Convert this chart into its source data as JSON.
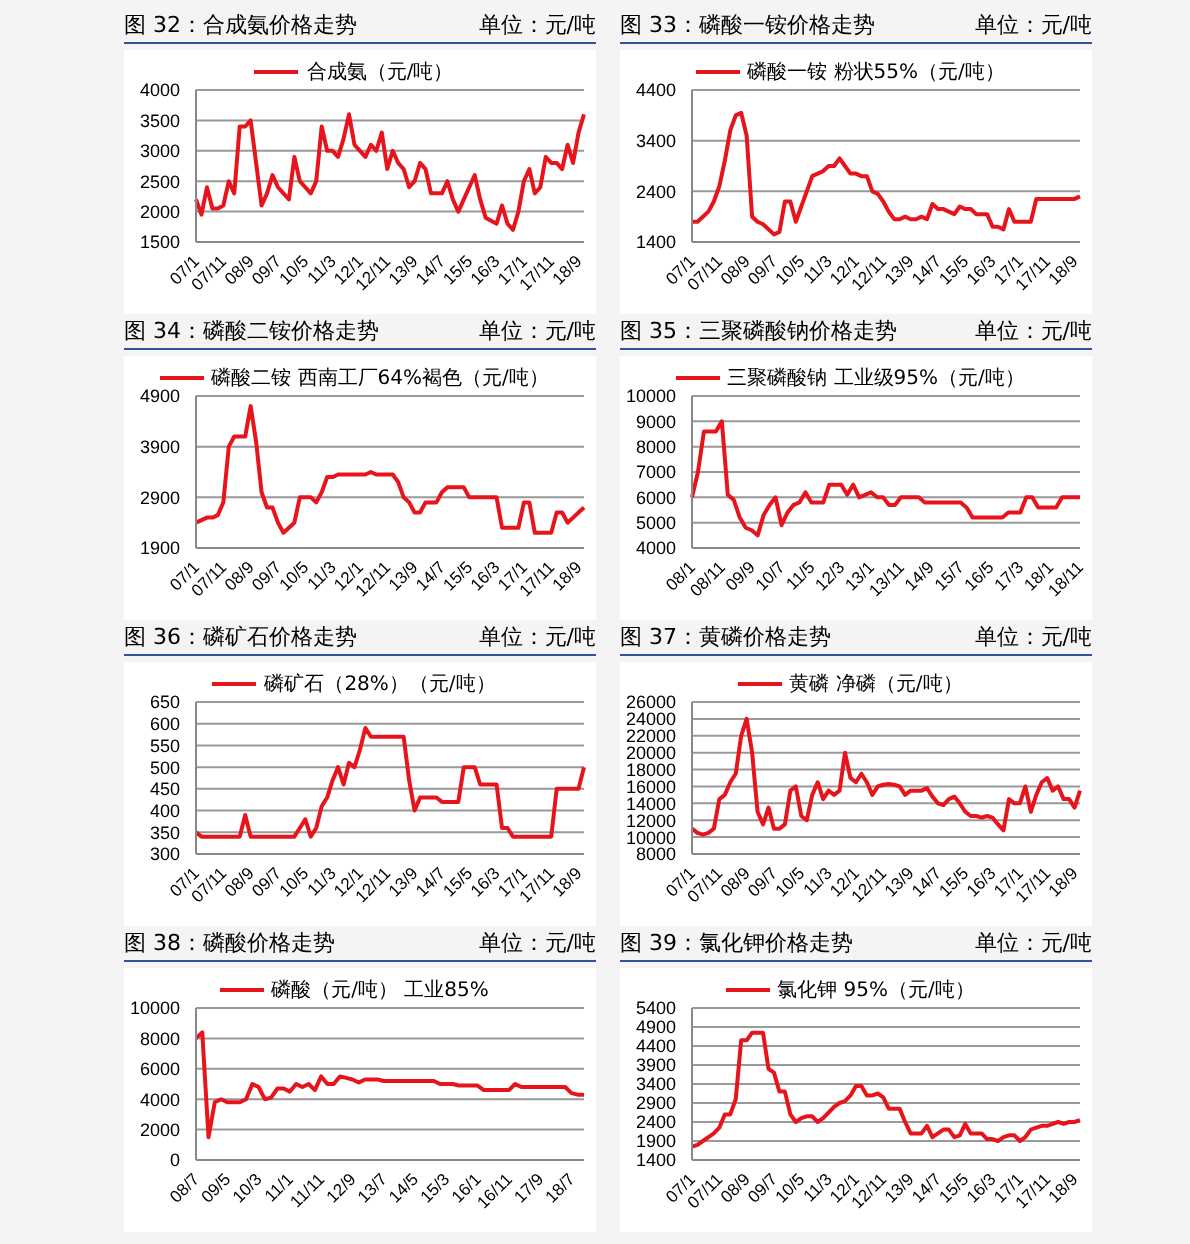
{
  "chart_data": [
    {
      "type": "line",
      "title": "图 32：合成氨价格走势",
      "subtitle": "单位：元/吨",
      "categories": [
        "07/1",
        null,
        null,
        null,
        null,
        "07/11",
        null,
        null,
        null,
        null,
        "08/9",
        null,
        null,
        null,
        null,
        "09/7",
        null,
        null,
        null,
        null,
        "10/5",
        null,
        null,
        null,
        null,
        "11/3",
        null,
        null,
        null,
        null,
        "12/1",
        null,
        null,
        null,
        null,
        "12/11",
        null,
        null,
        null,
        null,
        "13/9",
        null,
        null,
        null,
        null,
        "14/7",
        null,
        null,
        null,
        null,
        "15/5",
        null,
        null,
        null,
        null,
        "16/3",
        null,
        null,
        null,
        null,
        "17/1",
        null,
        null,
        null,
        null,
        "17/11",
        null,
        null,
        null,
        null,
        "18/9",
        null
      ],
      "series": [
        {
          "name": "合成氨（元/吨）",
          "color": "#e8141c",
          "values": [
            2200,
            1950,
            2400,
            2050,
            2050,
            2100,
            2500,
            2300,
            3400,
            3400,
            3500,
            2800,
            2100,
            2300,
            2600,
            2400,
            2300,
            2200,
            2900,
            2500,
            2400,
            2300,
            2500,
            3400,
            3000,
            3000,
            2900,
            3200,
            3600,
            3100,
            3000,
            2900,
            3100,
            3000,
            3300,
            2700,
            3000,
            2800,
            2700,
            2400,
            2500,
            2800,
            2700,
            2300,
            2300,
            2300,
            2500,
            2200,
            2000,
            2200,
            2400,
            2600,
            2200,
            1900,
            1850,
            1800,
            2100,
            1800,
            1700,
            2000,
            2500,
            2700,
            2300,
            2400,
            2900,
            2800,
            2800,
            2700,
            3100,
            2800,
            3300,
            3600
          ]
        }
      ],
      "ylim": [
        1500,
        4000
      ],
      "yticks": [
        1500,
        2000,
        2500,
        3000,
        3500,
        4000
      ],
      "grid": "y",
      "legend": "top"
    },
    {
      "type": "line",
      "title": "图 33：磷酸一铵价格走势",
      "subtitle": "单位：元/吨",
      "categories": [
        "07/1",
        null,
        null,
        null,
        null,
        "07/11",
        null,
        null,
        null,
        null,
        "08/9",
        null,
        null,
        null,
        null,
        "09/7",
        null,
        null,
        null,
        null,
        "10/5",
        null,
        null,
        null,
        null,
        "11/3",
        null,
        null,
        null,
        null,
        "12/1",
        null,
        null,
        null,
        null,
        "12/11",
        null,
        null,
        null,
        null,
        "13/9",
        null,
        null,
        null,
        null,
        "14/7",
        null,
        null,
        null,
        null,
        "15/5",
        null,
        null,
        null,
        null,
        "16/3",
        null,
        null,
        null,
        null,
        "17/1",
        null,
        null,
        null,
        null,
        "17/11",
        null,
        null,
        null,
        null,
        "18/9",
        null
      ],
      "series": [
        {
          "name": "磷酸一铵 粉状55%（元/吨）",
          "color": "#e8141c",
          "values": [
            1800,
            1800,
            1900,
            2000,
            2200,
            2500,
            3000,
            3600,
            3900,
            3950,
            3500,
            1900,
            1800,
            1750,
            1650,
            1550,
            1600,
            2200,
            2200,
            1800,
            2100,
            2400,
            2700,
            2750,
            2800,
            2900,
            2900,
            3050,
            2900,
            2750,
            2750,
            2700,
            2700,
            2400,
            2350,
            2200,
            2000,
            1850,
            1850,
            1900,
            1850,
            1850,
            1900,
            1850,
            2150,
            2050,
            2050,
            2000,
            1950,
            2100,
            2050,
            2050,
            1950,
            1950,
            1950,
            1700,
            1700,
            1650,
            2050,
            1800,
            1800,
            1800,
            1800,
            2250,
            2250,
            2250,
            2250,
            2250,
            2250,
            2250,
            2250,
            2300
          ]
        }
      ],
      "ylim": [
        1400,
        4400
      ],
      "yticks": [
        1400,
        2400,
        3400,
        4400
      ],
      "grid": "y",
      "legend": "top"
    },
    {
      "type": "line",
      "title": "图 34：磷酸二铵价格走势",
      "subtitle": "单位：元/吨",
      "categories": [
        "07/1",
        null,
        null,
        null,
        null,
        "07/11",
        null,
        null,
        null,
        null,
        "08/9",
        null,
        null,
        null,
        null,
        "09/7",
        null,
        null,
        null,
        null,
        "10/5",
        null,
        null,
        null,
        null,
        "11/3",
        null,
        null,
        null,
        null,
        "12/1",
        null,
        null,
        null,
        null,
        "12/11",
        null,
        null,
        null,
        null,
        "13/9",
        null,
        null,
        null,
        null,
        "14/7",
        null,
        null,
        null,
        null,
        "15/5",
        null,
        null,
        null,
        null,
        "16/3",
        null,
        null,
        null,
        null,
        "17/1",
        null,
        null,
        null,
        null,
        "17/11",
        null,
        null,
        null,
        null,
        "18/9",
        null
      ],
      "series": [
        {
          "name": "磷酸二铵 西南工厂64%褐色（元/吨）",
          "color": "#e8141c",
          "values": [
            2400,
            2450,
            2500,
            2500,
            2550,
            2800,
            3900,
            4100,
            4100,
            4100,
            4700,
            4000,
            3000,
            2700,
            2700,
            2400,
            2200,
            2300,
            2400,
            2900,
            2900,
            2900,
            2800,
            3000,
            3300,
            3300,
            3350,
            3350,
            3350,
            3350,
            3350,
            3350,
            3400,
            3350,
            3350,
            3350,
            3350,
            3200,
            2900,
            2800,
            2600,
            2600,
            2800,
            2800,
            2800,
            3000,
            3100,
            3100,
            3100,
            3100,
            2900,
            2900,
            2900,
            2900,
            2900,
            2900,
            2300,
            2300,
            2300,
            2300,
            2800,
            2800,
            2200,
            2200,
            2200,
            2200,
            2600,
            2600,
            2400,
            2500,
            2600,
            2700
          ]
        }
      ],
      "ylim": [
        1900,
        4900
      ],
      "yticks": [
        1900,
        2900,
        3900,
        4900
      ],
      "grid": "y",
      "legend": "top"
    },
    {
      "type": "line",
      "title": "图 35：三聚磷酸钠价格走势",
      "subtitle": "单位：元/吨",
      "categories": [
        "08/1",
        null,
        null,
        null,
        null,
        "08/11",
        null,
        null,
        null,
        null,
        "09/9",
        null,
        null,
        null,
        null,
        "10/7",
        null,
        null,
        null,
        null,
        "11/5",
        null,
        null,
        null,
        null,
        "12/3",
        null,
        null,
        null,
        null,
        "13/1",
        null,
        null,
        null,
        null,
        "13/11",
        null,
        null,
        null,
        null,
        "14/9",
        null,
        null,
        null,
        null,
        "15/7",
        null,
        null,
        null,
        null,
        "16/5",
        null,
        null,
        null,
        null,
        "17/3",
        null,
        null,
        null,
        null,
        "18/1",
        null,
        null,
        null,
        null,
        "18/11"
      ],
      "series": [
        {
          "name": "三聚磷酸钠 工业级95%（元/吨）",
          "color": "#e8141c",
          "values": [
            6000,
            7000,
            8600,
            8600,
            8600,
            9000,
            6100,
            5900,
            5200,
            4800,
            4700,
            4500,
            5300,
            5700,
            6000,
            4900,
            5400,
            5700,
            5800,
            6200,
            5800,
            5800,
            5800,
            6500,
            6500,
            6500,
            6100,
            6500,
            6000,
            6100,
            6200,
            6000,
            6000,
            5700,
            5700,
            6000,
            6000,
            6000,
            6000,
            5800,
            5800,
            5800,
            5800,
            5800,
            5800,
            5800,
            5600,
            5200,
            5200,
            5200,
            5200,
            5200,
            5200,
            5400,
            5400,
            5400,
            6000,
            6000,
            5600,
            5600,
            5600,
            5600,
            6000,
            6000,
            6000,
            6000
          ]
        }
      ],
      "ylim": [
        4000,
        10000
      ],
      "yticks": [
        4000,
        5000,
        6000,
        7000,
        8000,
        9000,
        10000
      ],
      "grid": "y",
      "legend": "top"
    },
    {
      "type": "line",
      "title": "图 36：磷矿石价格走势",
      "subtitle": "单位：元/吨",
      "categories": [
        "07/1",
        null,
        null,
        null,
        null,
        "07/11",
        null,
        null,
        null,
        null,
        "08/9",
        null,
        null,
        null,
        null,
        "09/7",
        null,
        null,
        null,
        null,
        "10/5",
        null,
        null,
        null,
        null,
        "11/3",
        null,
        null,
        null,
        null,
        "12/1",
        null,
        null,
        null,
        null,
        "12/11",
        null,
        null,
        null,
        null,
        "13/9",
        null,
        null,
        null,
        null,
        "14/7",
        null,
        null,
        null,
        null,
        "15/5",
        null,
        null,
        null,
        null,
        "16/3",
        null,
        null,
        null,
        null,
        "17/1",
        null,
        null,
        null,
        null,
        "17/11",
        null,
        null,
        null,
        null,
        "18/9",
        null
      ],
      "series": [
        {
          "name": "磷矿石（28%）（元/吨）",
          "color": "#e8141c",
          "values": [
            350,
            340,
            340,
            340,
            340,
            340,
            340,
            340,
            340,
            390,
            340,
            340,
            340,
            340,
            340,
            340,
            340,
            340,
            340,
            360,
            380,
            340,
            360,
            410,
            430,
            470,
            500,
            460,
            510,
            500,
            540,
            590,
            570,
            570,
            570,
            570,
            570,
            570,
            570,
            470,
            400,
            430,
            430,
            430,
            430,
            420,
            420,
            420,
            420,
            500,
            500,
            500,
            460,
            460,
            460,
            460,
            360,
            360,
            340,
            340,
            340,
            340,
            340,
            340,
            340,
            340,
            450,
            450,
            450,
            450,
            450,
            500
          ]
        }
      ],
      "ylim": [
        300,
        650
      ],
      "yticks": [
        300,
        350,
        400,
        450,
        500,
        550,
        600,
        650
      ],
      "grid": "y",
      "legend": "top"
    },
    {
      "type": "line",
      "title": "图 37：黄磷价格走势",
      "subtitle": "单位：元/吨",
      "categories": [
        "07/1",
        null,
        null,
        null,
        null,
        "07/11",
        null,
        null,
        null,
        null,
        "08/9",
        null,
        null,
        null,
        null,
        "09/7",
        null,
        null,
        null,
        null,
        "10/5",
        null,
        null,
        null,
        null,
        "11/3",
        null,
        null,
        null,
        null,
        "12/1",
        null,
        null,
        null,
        null,
        "12/11",
        null,
        null,
        null,
        null,
        "13/9",
        null,
        null,
        null,
        null,
        "14/7",
        null,
        null,
        null,
        null,
        "15/5",
        null,
        null,
        null,
        null,
        "16/3",
        null,
        null,
        null,
        null,
        "17/1",
        null,
        null,
        null,
        null,
        "17/11",
        null,
        null,
        null,
        null,
        "18/9",
        null
      ],
      "series": [
        {
          "name": "黄磷 净磷（元/吨）",
          "color": "#e8141c",
          "values": [
            11000,
            10500,
            10300,
            10500,
            11000,
            14500,
            15000,
            16500,
            17500,
            22000,
            24000,
            20000,
            13000,
            11500,
            13500,
            11000,
            11000,
            11500,
            15500,
            16000,
            12500,
            12000,
            15000,
            16500,
            14500,
            15500,
            15000,
            15500,
            20000,
            17000,
            16500,
            17500,
            16500,
            15000,
            16000,
            16200,
            16300,
            16200,
            16000,
            15000,
            15500,
            15500,
            15500,
            15800,
            14800,
            14000,
            13800,
            14500,
            14800,
            14000,
            13000,
            12500,
            12500,
            12300,
            12500,
            12300,
            11500,
            10800,
            14500,
            14000,
            14000,
            16000,
            13000,
            15000,
            16500,
            17000,
            15500,
            16000,
            14500,
            14500,
            13500,
            15500
          ]
        }
      ],
      "ylim": [
        8000,
        26000
      ],
      "yticks": [
        8000,
        10000,
        12000,
        14000,
        16000,
        18000,
        20000,
        22000,
        24000,
        26000
      ],
      "grid": "y",
      "legend": "top"
    },
    {
      "type": "line",
      "title": "图 38：磷酸价格走势",
      "subtitle": "单位：元/吨",
      "categories": [
        "08/7",
        null,
        null,
        null,
        null,
        "09/5",
        null,
        null,
        null,
        null,
        "10/3",
        null,
        null,
        null,
        null,
        "11/1",
        null,
        null,
        null,
        null,
        "11/11",
        null,
        null,
        null,
        null,
        "12/9",
        null,
        null,
        null,
        null,
        "13/7",
        null,
        null,
        null,
        null,
        "14/5",
        null,
        null,
        null,
        null,
        "15/3",
        null,
        null,
        null,
        null,
        "16/1",
        null,
        null,
        null,
        null,
        "16/11",
        null,
        null,
        null,
        null,
        "17/9",
        null,
        null,
        null,
        null,
        "18/7",
        null,
        null
      ],
      "series": [
        {
          "name": "磷酸（元/吨） 工业85%",
          "color": "#e8141c",
          "values": [
            8000,
            8400,
            1500,
            3800,
            4000,
            3800,
            3800,
            3800,
            4000,
            5000,
            4800,
            4000,
            4100,
            4700,
            4700,
            4500,
            5000,
            4800,
            5000,
            4600,
            5500,
            5000,
            5000,
            5500,
            5400,
            5300,
            5100,
            5300,
            5300,
            5300,
            5200,
            5200,
            5200,
            5200,
            5200,
            5200,
            5200,
            5200,
            5200,
            5000,
            5000,
            5000,
            4900,
            4900,
            4900,
            4900,
            4600,
            4600,
            4600,
            4600,
            4600,
            5000,
            4800,
            4800,
            4800,
            4800,
            4800,
            4800,
            4800,
            4800,
            4400,
            4300,
            4300
          ]
        }
      ],
      "ylim": [
        0,
        10000
      ],
      "yticks": [
        0,
        2000,
        4000,
        6000,
        8000,
        10000
      ],
      "grid": "y",
      "legend": "top"
    },
    {
      "type": "line",
      "title": "图 39：氯化钾价格走势",
      "subtitle": "单位：元/吨",
      "categories": [
        "07/1",
        null,
        null,
        null,
        null,
        "07/11",
        null,
        null,
        null,
        null,
        "08/9",
        null,
        null,
        null,
        null,
        "09/7",
        null,
        null,
        null,
        null,
        "10/5",
        null,
        null,
        null,
        null,
        "11/3",
        null,
        null,
        null,
        null,
        "12/1",
        null,
        null,
        null,
        null,
        "12/11",
        null,
        null,
        null,
        null,
        "13/9",
        null,
        null,
        null,
        null,
        "14/7",
        null,
        null,
        null,
        null,
        "15/5",
        null,
        null,
        null,
        null,
        "16/3",
        null,
        null,
        null,
        null,
        "17/1",
        null,
        null,
        null,
        null,
        "17/11",
        null,
        null,
        null,
        null,
        "18/9",
        null
      ],
      "series": [
        {
          "name": "氯化钾 95%（元/吨）",
          "color": "#e8141c",
          "values": [
            1750,
            1800,
            1900,
            2000,
            2100,
            2250,
            2600,
            2600,
            3000,
            4550,
            4550,
            4750,
            4750,
            4750,
            3800,
            3700,
            3200,
            3200,
            2600,
            2400,
            2500,
            2550,
            2550,
            2400,
            2500,
            2650,
            2800,
            2900,
            2950,
            3100,
            3350,
            3350,
            3100,
            3100,
            3150,
            3050,
            2750,
            2750,
            2750,
            2400,
            2100,
            2100,
            2100,
            2300,
            2000,
            2100,
            2200,
            2200,
            2000,
            2050,
            2350,
            2100,
            2100,
            2100,
            1950,
            1950,
            1900,
            2000,
            2050,
            2050,
            1900,
            2000,
            2200,
            2250,
            2300,
            2300,
            2350,
            2400,
            2350,
            2400,
            2400,
            2450
          ]
        }
      ],
      "ylim": [
        1400,
        5400
      ],
      "yticks": [
        1400,
        1900,
        2400,
        2900,
        3400,
        3900,
        4400,
        4900,
        5400
      ],
      "grid": "y",
      "legend": "top"
    }
  ]
}
